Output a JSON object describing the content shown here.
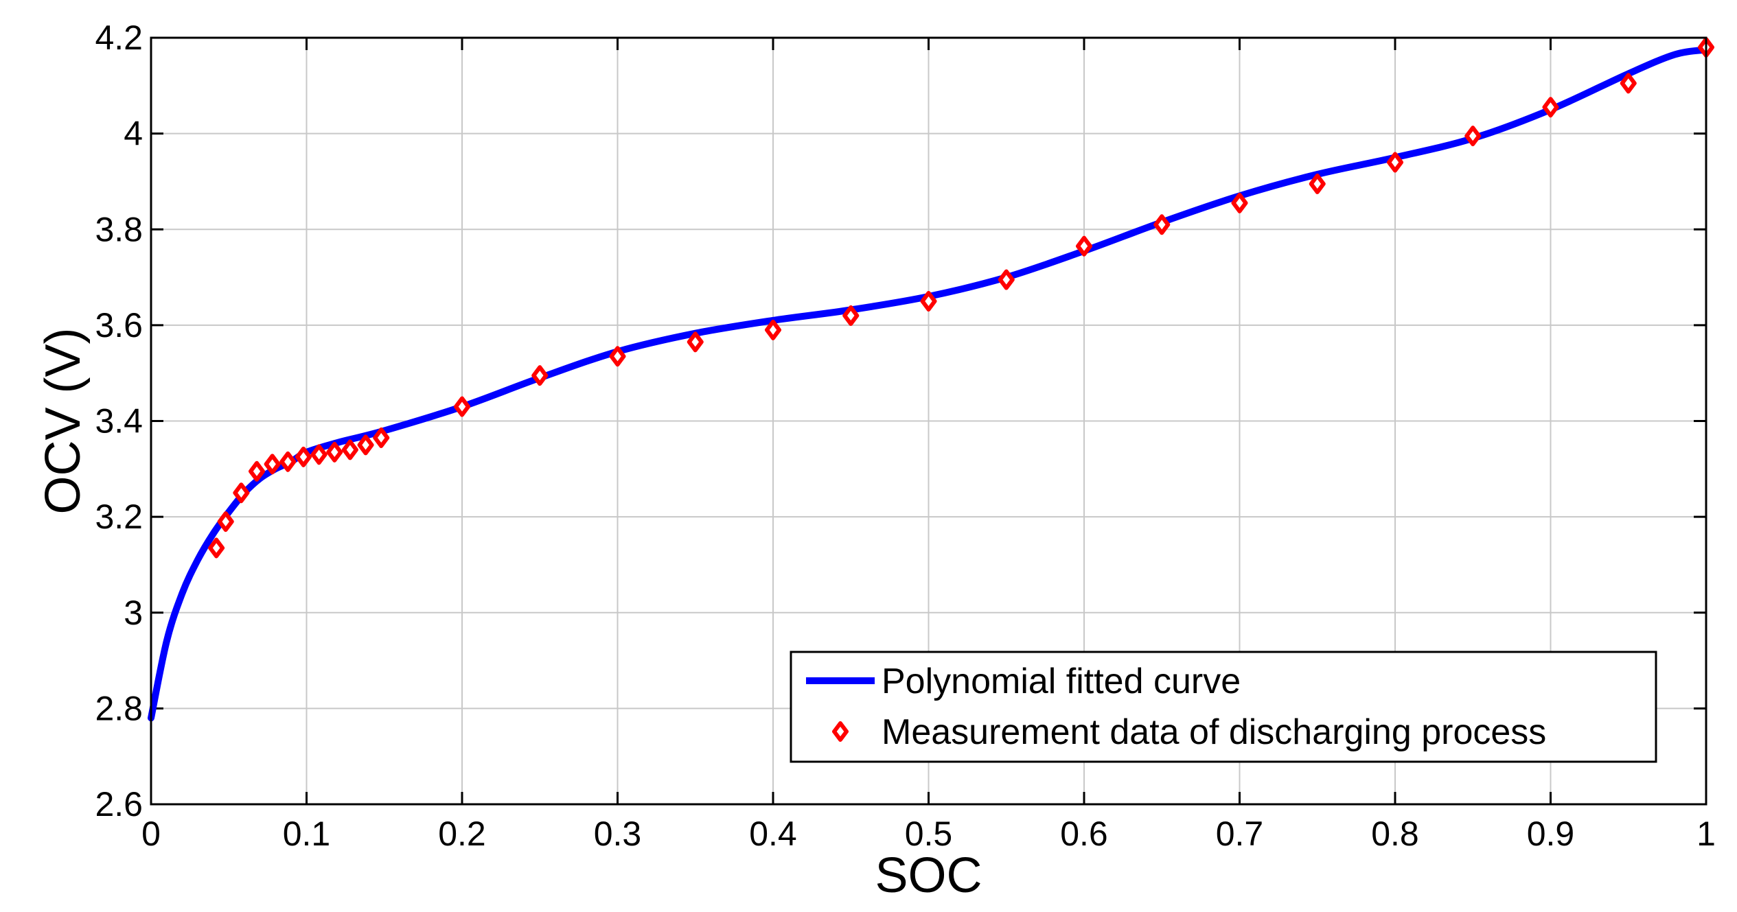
{
  "chart_data": {
    "type": "line",
    "title": "",
    "xlabel": "SOC",
    "ylabel": "OCV (V)",
    "xlim": [
      0,
      1
    ],
    "ylim": [
      2.6,
      4.2
    ],
    "xticks": [
      0,
      0.1,
      0.2,
      0.3,
      0.4,
      0.5,
      0.6,
      0.7,
      0.8,
      0.9,
      1
    ],
    "xtick_labels": [
      "0",
      "0.1",
      "0.2",
      "0.3",
      "0.4",
      "0.5",
      "0.6",
      "0.7",
      "0.8",
      "0.9",
      "1"
    ],
    "yticks": [
      2.6,
      2.8,
      3,
      3.2,
      3.4,
      3.6,
      3.8,
      4,
      4.2
    ],
    "ytick_labels": [
      "2.6",
      "2.8",
      "3",
      "3.2",
      "3.4",
      "3.6",
      "3.8",
      "4",
      "4.2"
    ],
    "grid": true,
    "legend_position": "lower-right",
    "colors": {
      "curve": "#0000ff",
      "marker": "#ff0000",
      "marker_edge": "#ff0000",
      "axis": "#000000",
      "grid": "#c8c8c8"
    },
    "series": [
      {
        "name": "Polynomial fitted curve",
        "kind": "line",
        "x": [
          0,
          0.01,
          0.02,
          0.03,
          0.04,
          0.05,
          0.06,
          0.07,
          0.08,
          0.09,
          0.1,
          0.12,
          0.15,
          0.2,
          0.25,
          0.3,
          0.35,
          0.4,
          0.45,
          0.5,
          0.55,
          0.6,
          0.65,
          0.7,
          0.75,
          0.8,
          0.85,
          0.9,
          0.95,
          0.98,
          1.0
        ],
        "y": [
          2.78,
          2.94,
          3.04,
          3.11,
          3.165,
          3.21,
          3.25,
          3.28,
          3.3,
          3.315,
          3.335,
          3.355,
          3.38,
          3.43,
          3.49,
          3.545,
          3.583,
          3.61,
          3.632,
          3.66,
          3.7,
          3.755,
          3.815,
          3.87,
          3.915,
          3.95,
          3.99,
          4.05,
          4.125,
          4.165,
          4.175
        ]
      },
      {
        "name": "Measurement data of discharging process",
        "kind": "scatter",
        "x": [
          0.042,
          0.048,
          0.058,
          0.068,
          0.078,
          0.088,
          0.098,
          0.108,
          0.118,
          0.128,
          0.138,
          0.148,
          0.2,
          0.25,
          0.3,
          0.35,
          0.4,
          0.45,
          0.5,
          0.55,
          0.6,
          0.65,
          0.7,
          0.75,
          0.8,
          0.85,
          0.9,
          0.95,
          1.0
        ],
        "y": [
          3.135,
          3.19,
          3.25,
          3.295,
          3.31,
          3.315,
          3.325,
          3.33,
          3.335,
          3.34,
          3.35,
          3.365,
          3.43,
          3.495,
          3.535,
          3.565,
          3.59,
          3.62,
          3.65,
          3.695,
          3.765,
          3.81,
          3.855,
          3.895,
          3.94,
          3.995,
          4.055,
          4.105,
          4.18
        ]
      }
    ]
  }
}
